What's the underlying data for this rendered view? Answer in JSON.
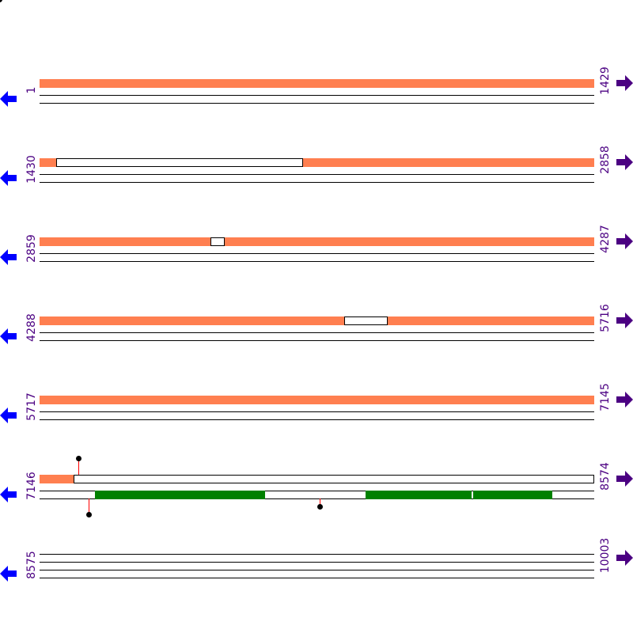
{
  "rows": [
    {
      "start": "1",
      "end": "1429"
    },
    {
      "start": "1430",
      "end": "2858"
    },
    {
      "start": "2859",
      "end": "4287"
    },
    {
      "start": "4288",
      "end": "5716"
    },
    {
      "start": "5717",
      "end": "7145"
    },
    {
      "start": "7146",
      "end": "8574"
    },
    {
      "start": "8575",
      "end": "10003"
    }
  ],
  "colors": {
    "feature": "#ff7f50",
    "cds": "#008000",
    "left_arrow": "#0000ff",
    "right_arrow": "#4b0082",
    "label": "#4b0082",
    "marker_stem": "#ff0000"
  },
  "icons": {
    "left": "arrow-left-icon",
    "right": "arrow-right-icon",
    "marker": "lollipop-marker-icon"
  }
}
